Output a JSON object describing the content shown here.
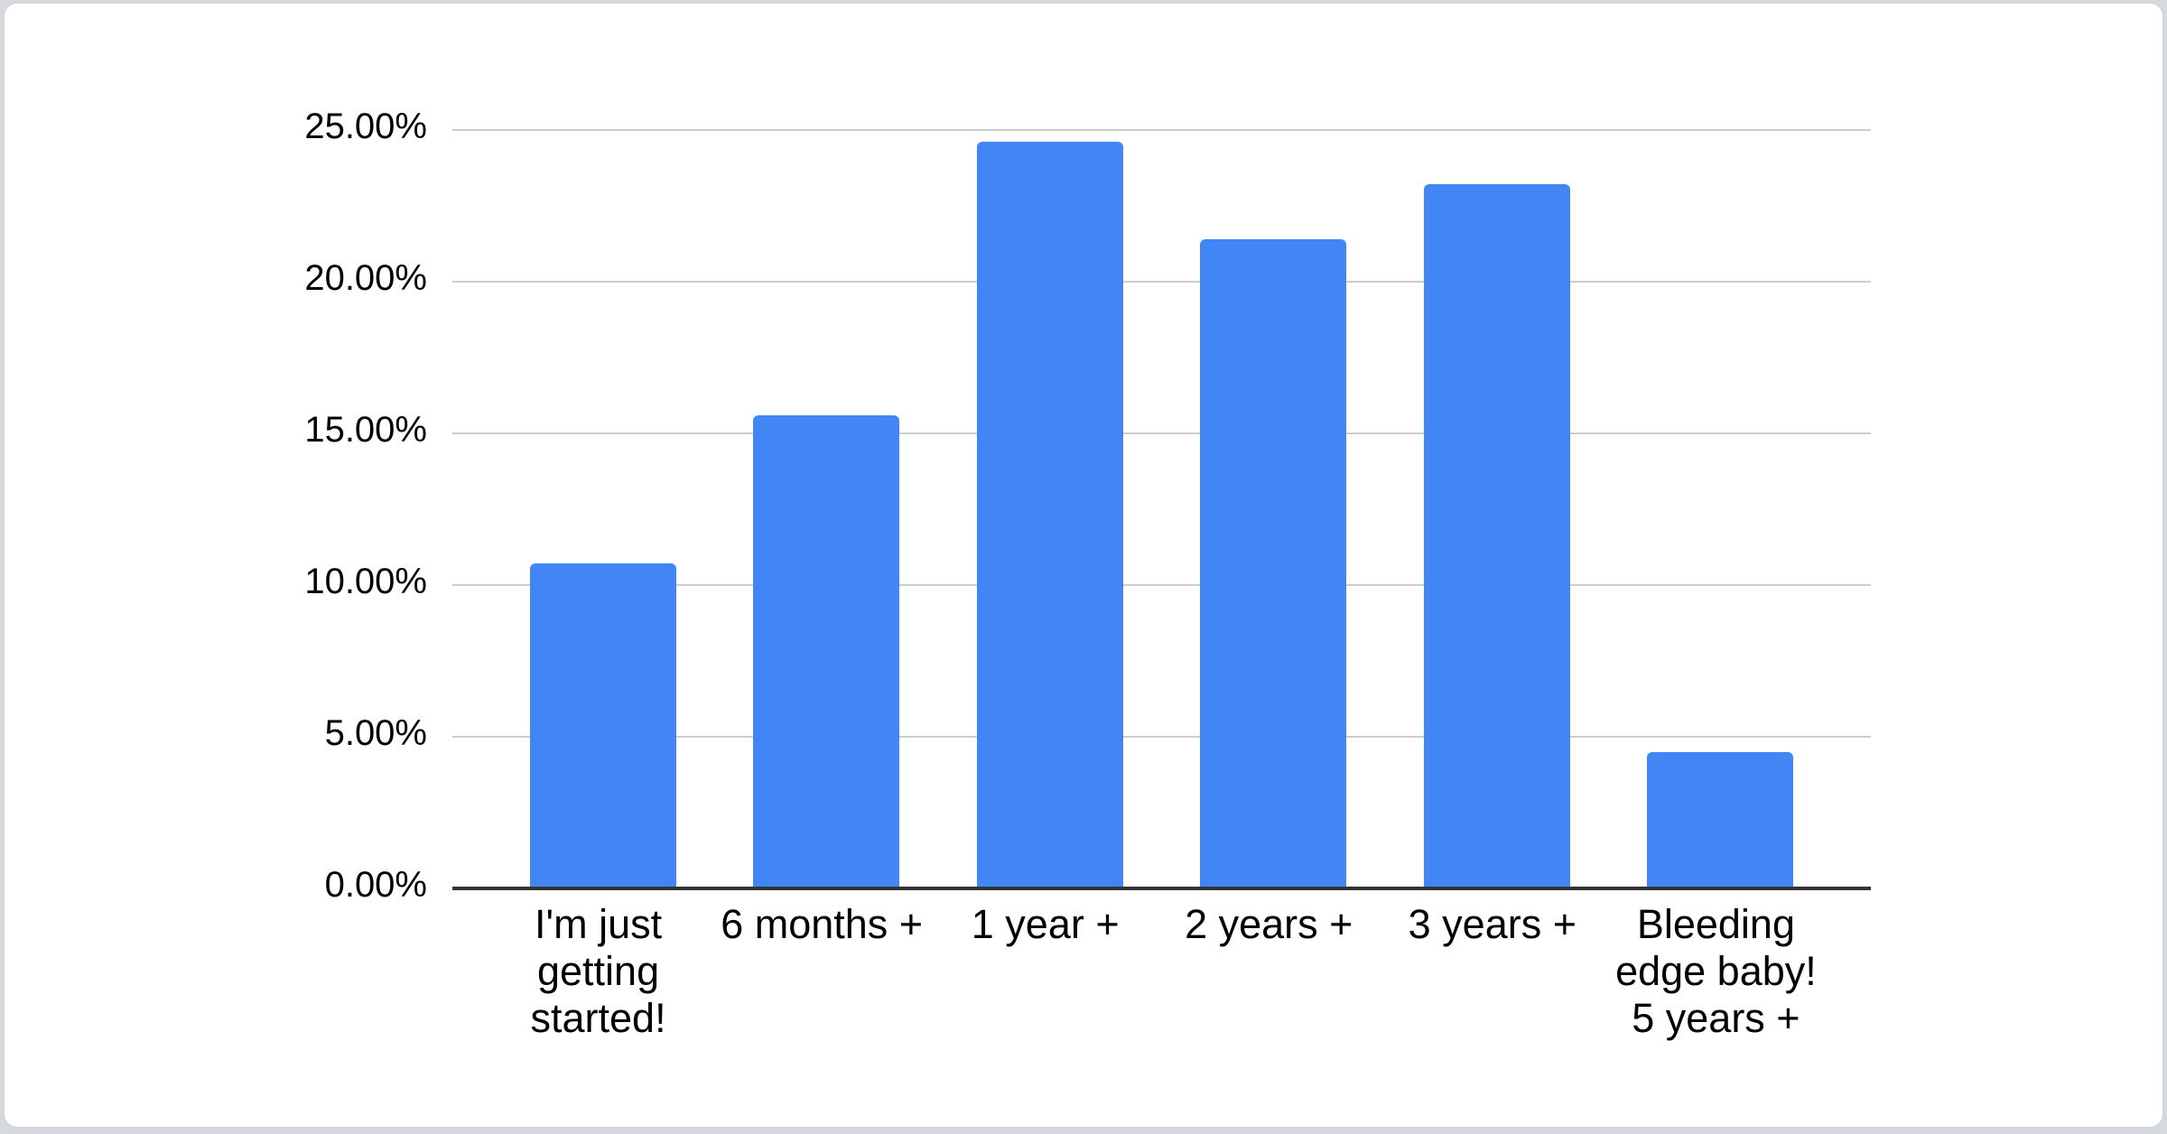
{
  "chart_data": {
    "type": "bar",
    "title": "",
    "xlabel": "",
    "ylabel": "",
    "categories": [
      "I'm just\ngetting\nstarted!",
      "6 months +",
      "1 year +",
      "2 years +",
      "3 years +",
      "Bleeding\nedge baby!\n5 years +"
    ],
    "values": [
      10.7,
      15.6,
      24.6,
      21.4,
      23.2,
      4.5
    ],
    "value_unit": "percent",
    "ylim": [
      0,
      25
    ],
    "y_tick_values": [
      25,
      20,
      15,
      10,
      5,
      0
    ],
    "y_tick_labels": [
      "25.00%",
      "20.00%",
      "15.00%",
      "10.00%",
      "5.00%",
      "0.00%"
    ],
    "grid": true,
    "legend": "none"
  },
  "colors": {
    "bar": "#4285f4",
    "gridline": "#cccccc",
    "baseline": "#333333",
    "text": "#000000",
    "card_background": "#ffffff",
    "card_border": "#d2d5d9",
    "page_background": "#d6dade"
  }
}
